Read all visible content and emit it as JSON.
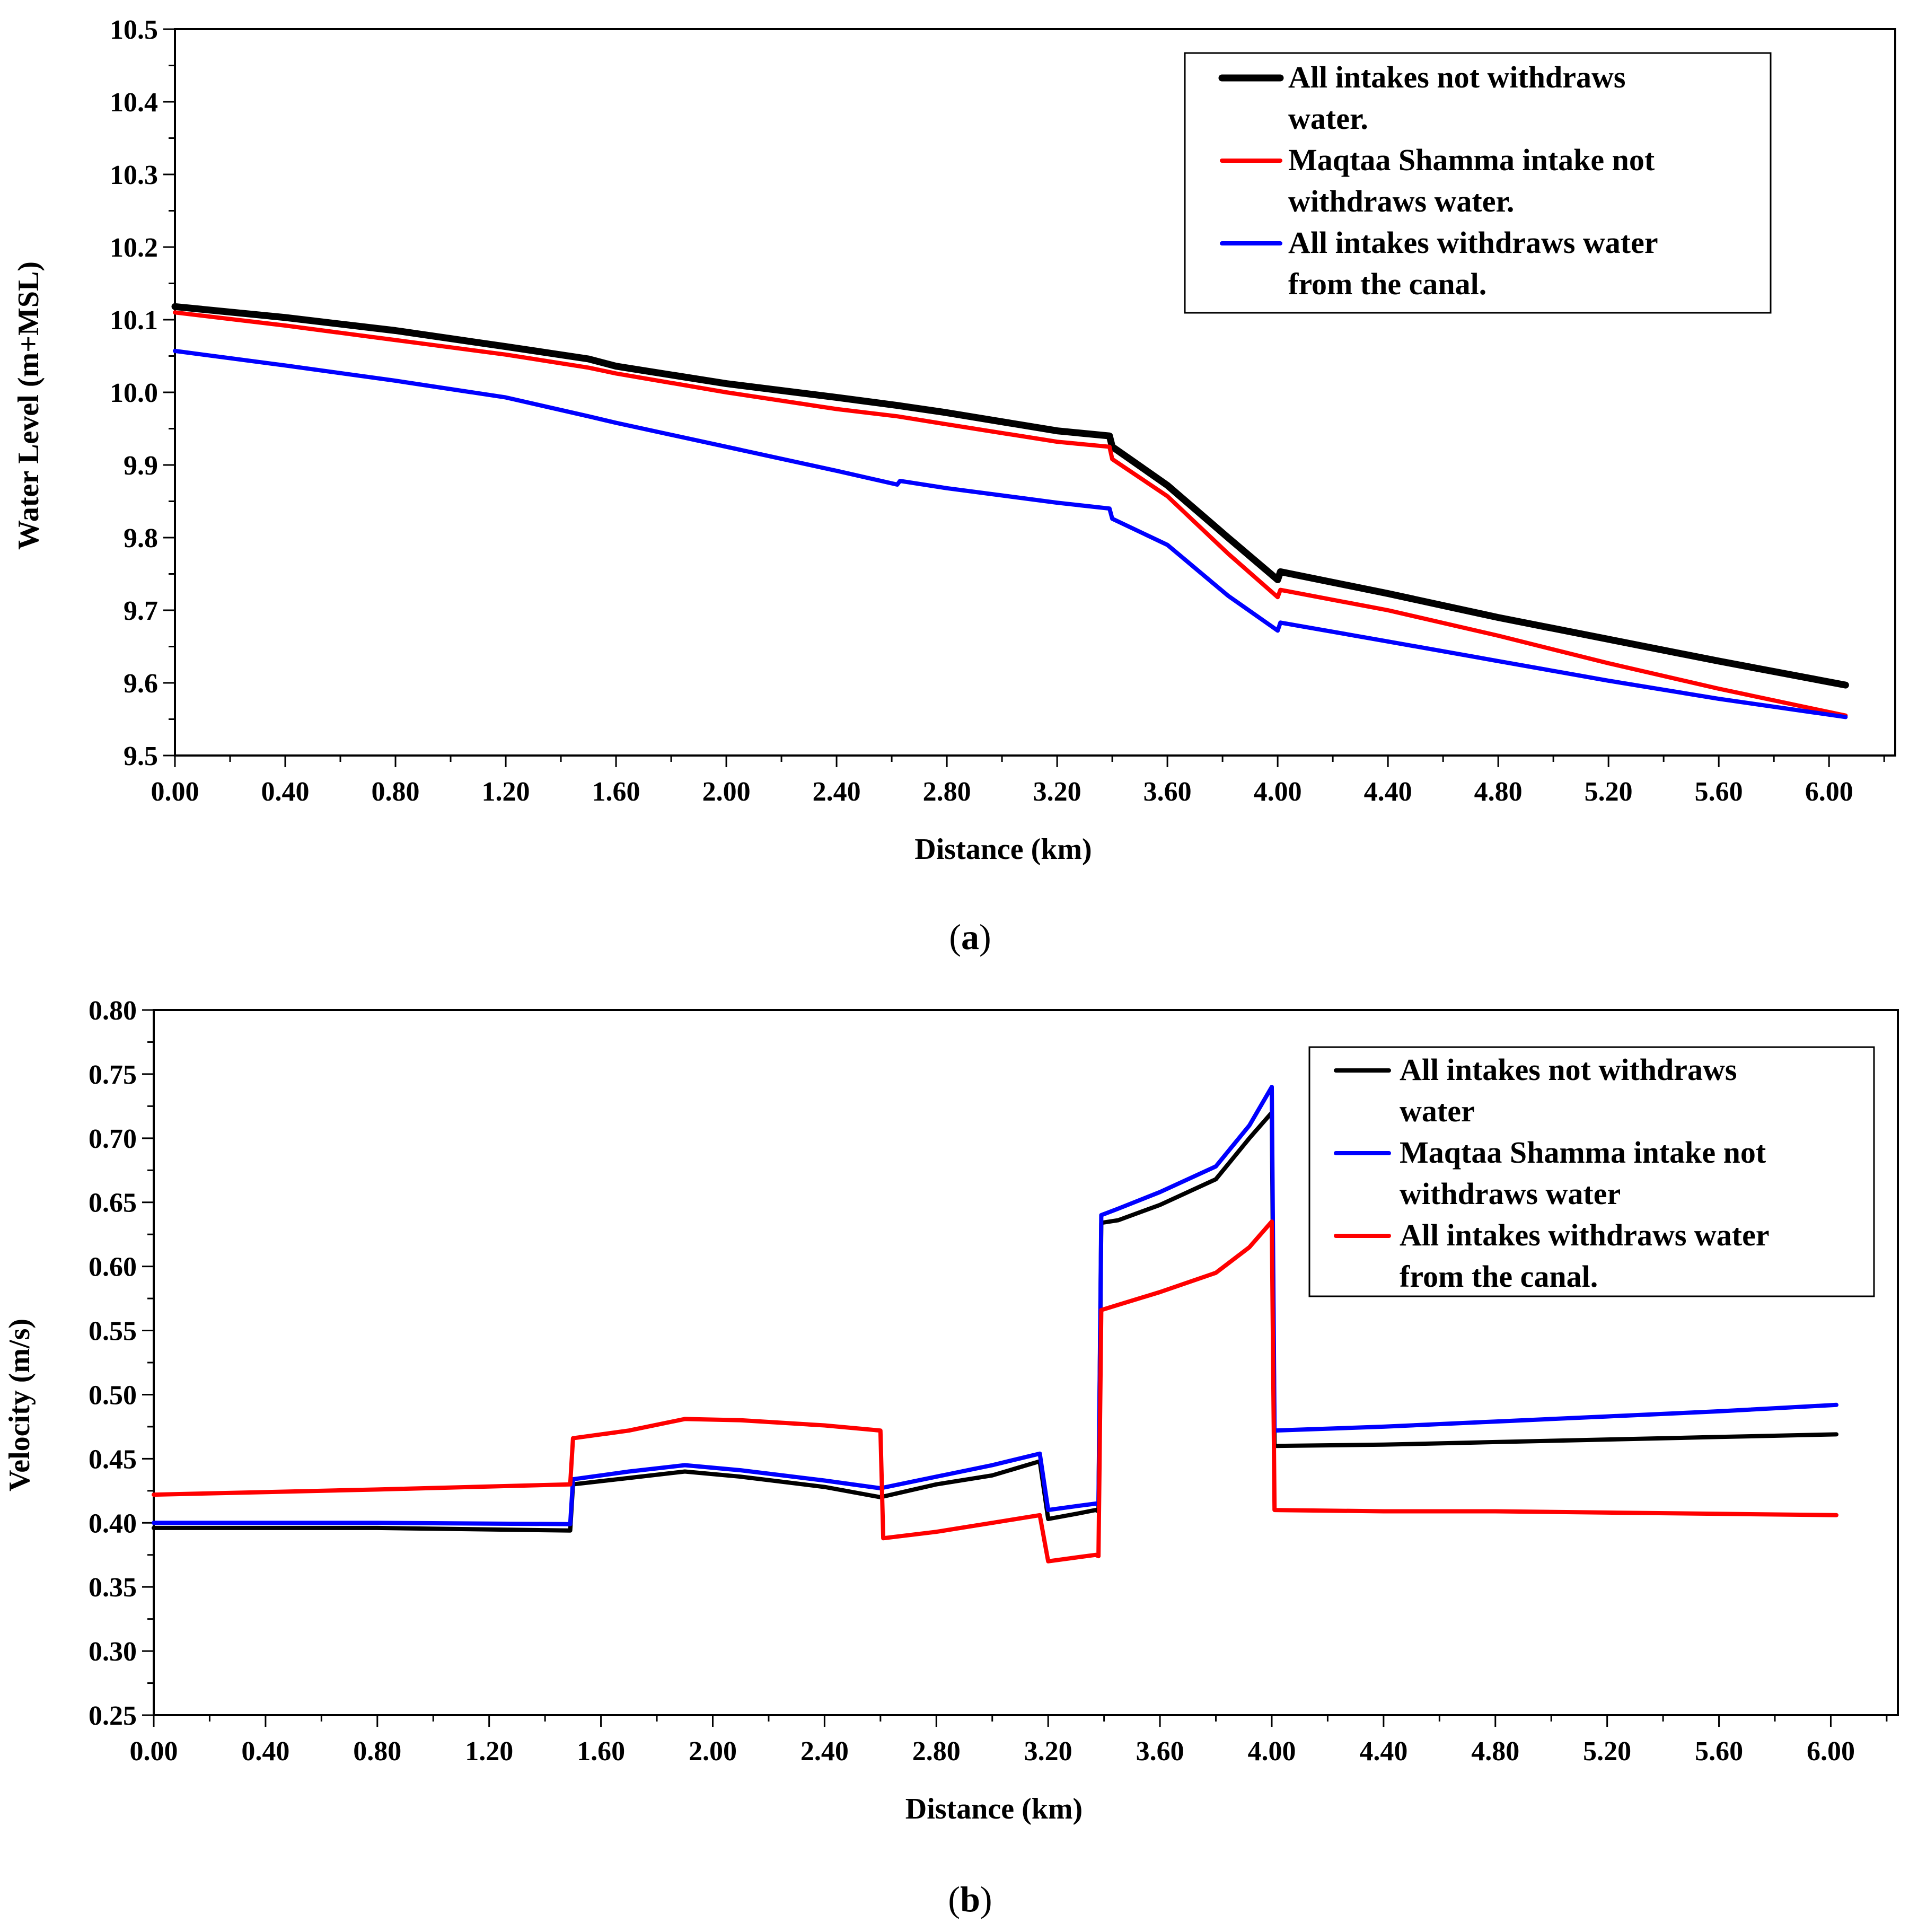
{
  "chart_data": [
    {
      "id": "a",
      "type": "line",
      "caption": "a",
      "title": "",
      "xlabel": "Distance (km)",
      "ylabel": "Water Level (m+MSL)",
      "xlim": [
        0,
        6.24
      ],
      "ylim": [
        9.5,
        10.5
      ],
      "grid": false,
      "legend_position": "top-right",
      "x_tick_labels": [
        "0.00",
        "0.40",
        "0.80",
        "1.20",
        "1.60",
        "2.00",
        "2.40",
        "2.80",
        "3.20",
        "3.60",
        "4.00",
        "4.40",
        "4.80",
        "5.20",
        "5.60",
        "6.00"
      ],
      "y_tick_labels": [
        "9.5",
        "9.6",
        "9.7",
        "9.8",
        "9.9",
        "10.0",
        "10.1",
        "10.2",
        "10.3",
        "10.4",
        "10.5"
      ],
      "series": [
        {
          "name": "All intakes not withdraws water.",
          "legend_lines": [
            "All intakes not withdraws",
            "water."
          ],
          "color": "#000000",
          "weight": "heavy",
          "points": [
            [
              0,
              10.118
            ],
            [
              0.4,
              10.103
            ],
            [
              0.8,
              10.085
            ],
            [
              1.2,
              10.063
            ],
            [
              1.5,
              10.046
            ],
            [
              1.6,
              10.036
            ],
            [
              2.0,
              10.012
            ],
            [
              2.4,
              9.993
            ],
            [
              2.62,
              9.982
            ],
            [
              2.8,
              9.972
            ],
            [
              3.2,
              9.947
            ],
            [
              3.39,
              9.94
            ],
            [
              3.4,
              9.925
            ],
            [
              3.6,
              9.872
            ],
            [
              3.82,
              9.8
            ],
            [
              4.0,
              9.742
            ],
            [
              4.01,
              9.753
            ],
            [
              4.4,
              9.723
            ],
            [
              4.8,
              9.69
            ],
            [
              5.2,
              9.66
            ],
            [
              5.6,
              9.63
            ],
            [
              6.06,
              9.597
            ]
          ]
        },
        {
          "name": "Maqtaa Shamma intake not withdraws water.",
          "legend_lines": [
            "Maqtaa Shamma intake not",
            "withdraws water."
          ],
          "color": "#ff0000",
          "weight": "normal",
          "points": [
            [
              0,
              10.11
            ],
            [
              0.4,
              10.092
            ],
            [
              0.8,
              10.072
            ],
            [
              1.2,
              10.052
            ],
            [
              1.5,
              10.034
            ],
            [
              1.6,
              10.026
            ],
            [
              2.0,
              10.0
            ],
            [
              2.4,
              9.977
            ],
            [
              2.62,
              9.967
            ],
            [
              2.8,
              9.956
            ],
            [
              3.2,
              9.932
            ],
            [
              3.39,
              9.925
            ],
            [
              3.4,
              9.908
            ],
            [
              3.6,
              9.857
            ],
            [
              3.82,
              9.778
            ],
            [
              4.0,
              9.718
            ],
            [
              4.01,
              9.728
            ],
            [
              4.4,
              9.7
            ],
            [
              4.8,
              9.665
            ],
            [
              5.2,
              9.627
            ],
            [
              5.6,
              9.592
            ],
            [
              6.06,
              9.555
            ]
          ]
        },
        {
          "name": "All intakes withdraws water from the canal.",
          "legend_lines": [
            "All intakes withdraws water",
            "from the canal."
          ],
          "color": "#0000ff",
          "weight": "normal",
          "points": [
            [
              0,
              10.057
            ],
            [
              0.4,
              10.037
            ],
            [
              0.8,
              10.016
            ],
            [
              1.2,
              9.993
            ],
            [
              1.5,
              9.967
            ],
            [
              1.6,
              9.958
            ],
            [
              2.0,
              9.925
            ],
            [
              2.4,
              9.892
            ],
            [
              2.62,
              9.873
            ],
            [
              2.63,
              9.878
            ],
            [
              2.8,
              9.868
            ],
            [
              3.2,
              9.848
            ],
            [
              3.39,
              9.84
            ],
            [
              3.4,
              9.826
            ],
            [
              3.6,
              9.79
            ],
            [
              3.82,
              9.72
            ],
            [
              4.0,
              9.672
            ],
            [
              4.01,
              9.683
            ],
            [
              4.4,
              9.657
            ],
            [
              4.8,
              9.63
            ],
            [
              5.2,
              9.603
            ],
            [
              5.6,
              9.578
            ],
            [
              6.06,
              9.553
            ]
          ]
        }
      ]
    },
    {
      "id": "b",
      "type": "line",
      "caption": "b",
      "title": "",
      "xlabel": "Distance (km)",
      "ylabel": "Velocity (m/s)",
      "xlim": [
        0,
        6.24
      ],
      "ylim": [
        0.25,
        0.8
      ],
      "grid": false,
      "legend_position": "top-right",
      "x_tick_labels": [
        "0.00",
        "0.40",
        "0.80",
        "1.20",
        "1.60",
        "2.00",
        "2.40",
        "2.80",
        "3.20",
        "3.60",
        "4.00",
        "4.40",
        "4.80",
        "5.20",
        "5.60",
        "6.00"
      ],
      "y_tick_labels": [
        "0.25",
        "0.30",
        "0.35",
        "0.40",
        "0.45",
        "0.50",
        "0.55",
        "0.60",
        "0.65",
        "0.70",
        "0.75",
        "0.80"
      ],
      "series": [
        {
          "name": "All intakes not withdraws water",
          "legend_lines": [
            "All intakes not withdraws",
            "water"
          ],
          "color": "#000000",
          "weight": "normal",
          "points": [
            [
              0,
              0.396
            ],
            [
              0.8,
              0.396
            ],
            [
              1.49,
              0.394
            ],
            [
              1.5,
              0.43
            ],
            [
              1.7,
              0.435
            ],
            [
              1.9,
              0.44
            ],
            [
              2.1,
              0.436
            ],
            [
              2.4,
              0.428
            ],
            [
              2.6,
              0.42
            ],
            [
              2.8,
              0.43
            ],
            [
              3.0,
              0.437
            ],
            [
              3.17,
              0.448
            ],
            [
              3.2,
              0.403
            ],
            [
              3.3,
              0.407
            ],
            [
              3.37,
              0.41
            ],
            [
              3.38,
              0.409
            ],
            [
              3.39,
              0.634
            ],
            [
              3.45,
              0.636
            ],
            [
              3.6,
              0.648
            ],
            [
              3.8,
              0.668
            ],
            [
              3.92,
              0.7
            ],
            [
              4.0,
              0.72
            ],
            [
              4.01,
              0.46
            ],
            [
              4.4,
              0.461
            ],
            [
              4.8,
              0.463
            ],
            [
              5.2,
              0.465
            ],
            [
              5.6,
              0.467
            ],
            [
              6.02,
              0.469
            ]
          ]
        },
        {
          "name": "Maqtaa Shamma intake not withdraws water",
          "legend_lines": [
            "Maqtaa Shamma intake not",
            "withdraws water"
          ],
          "color": "#0000ff",
          "weight": "normal",
          "points": [
            [
              0,
              0.4
            ],
            [
              0.8,
              0.4
            ],
            [
              1.49,
              0.399
            ],
            [
              1.5,
              0.434
            ],
            [
              1.7,
              0.44
            ],
            [
              1.9,
              0.445
            ],
            [
              2.1,
              0.441
            ],
            [
              2.4,
              0.433
            ],
            [
              2.6,
              0.427
            ],
            [
              2.8,
              0.436
            ],
            [
              3.0,
              0.445
            ],
            [
              3.17,
              0.454
            ],
            [
              3.2,
              0.41
            ],
            [
              3.3,
              0.413
            ],
            [
              3.37,
              0.415
            ],
            [
              3.38,
              0.414
            ],
            [
              3.39,
              0.64
            ],
            [
              3.45,
              0.645
            ],
            [
              3.6,
              0.658
            ],
            [
              3.8,
              0.678
            ],
            [
              3.92,
              0.71
            ],
            [
              4.0,
              0.74
            ],
            [
              4.01,
              0.472
            ],
            [
              4.4,
              0.475
            ],
            [
              4.8,
              0.479
            ],
            [
              5.2,
              0.483
            ],
            [
              5.6,
              0.487
            ],
            [
              6.02,
              0.492
            ]
          ]
        },
        {
          "name": "All intakes withdraws water from the canal.",
          "legend_lines": [
            "All intakes withdraws water",
            "from the canal."
          ],
          "color": "#ff0000",
          "weight": "normal",
          "points": [
            [
              0,
              0.422
            ],
            [
              0.8,
              0.426
            ],
            [
              1.49,
              0.43
            ],
            [
              1.5,
              0.466
            ],
            [
              1.7,
              0.472
            ],
            [
              1.9,
              0.481
            ],
            [
              2.1,
              0.48
            ],
            [
              2.4,
              0.476
            ],
            [
              2.6,
              0.472
            ],
            [
              2.61,
              0.388
            ],
            [
              2.8,
              0.393
            ],
            [
              3.0,
              0.4
            ],
            [
              3.17,
              0.406
            ],
            [
              3.2,
              0.37
            ],
            [
              3.3,
              0.373
            ],
            [
              3.37,
              0.375
            ],
            [
              3.38,
              0.374
            ],
            [
              3.39,
              0.566
            ],
            [
              3.45,
              0.57
            ],
            [
              3.6,
              0.58
            ],
            [
              3.8,
              0.595
            ],
            [
              3.92,
              0.615
            ],
            [
              4.0,
              0.635
            ],
            [
              4.01,
              0.41
            ],
            [
              4.4,
              0.409
            ],
            [
              4.8,
              0.409
            ],
            [
              5.2,
              0.408
            ],
            [
              5.6,
              0.407
            ],
            [
              6.02,
              0.406
            ]
          ]
        }
      ]
    }
  ]
}
